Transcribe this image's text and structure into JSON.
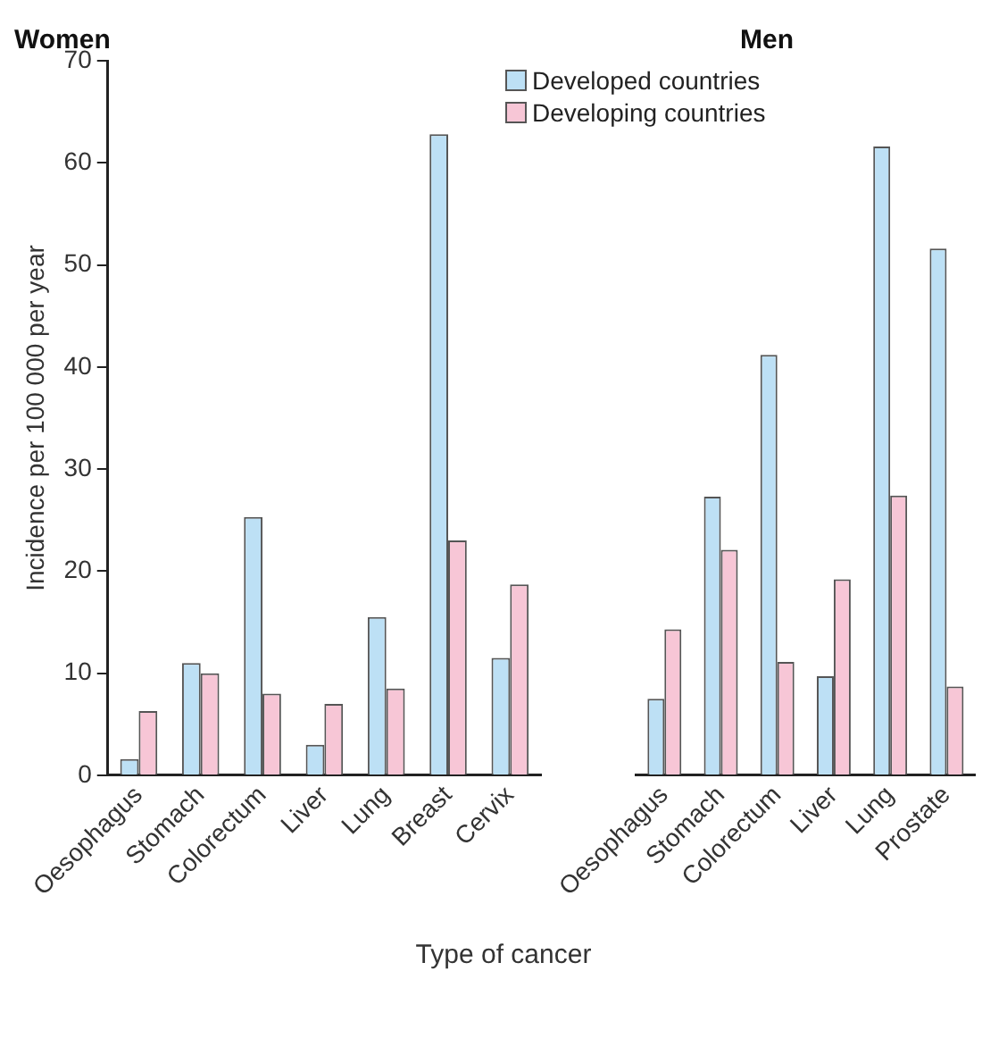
{
  "chart_data": [
    {
      "type": "bar",
      "title": "Women",
      "ylabel": "Incidence per 100 000 per year",
      "xlabel": "Type of cancer",
      "categories": [
        "Oesophagus",
        "Stomach",
        "Colorectum",
        "Liver",
        "Lung",
        "Breast",
        "Cervix"
      ],
      "series": [
        {
          "color": "#bde0f5",
          "values": [
            1.6,
            11,
            25.3,
            3,
            15.5,
            62.8,
            11.5
          ]
        },
        {
          "color": "#f7c6d6",
          "values": [
            6.3,
            10,
            8,
            7,
            8.5,
            23,
            18.7
          ]
        }
      ],
      "ylim": [
        0,
        70
      ],
      "yticks": [
        0,
        10,
        20,
        30,
        40,
        50,
        60,
        70
      ],
      "grid": false,
      "legend": false
    },
    {
      "type": "bar",
      "title": "Men",
      "categories": [
        "Oesophagus",
        "Stomach",
        "Colorectum",
        "Liver",
        "Lung",
        "Prostate"
      ],
      "series": [
        {
          "name": "Developed countries",
          "color": "#bde0f5",
          "values": [
            7.5,
            27.3,
            41.2,
            9.7,
            61.6,
            51.6
          ]
        },
        {
          "name": "Developing countries",
          "color": "#f7c6d6",
          "values": [
            14.3,
            22.1,
            11.1,
            19.2,
            27.4,
            8.7
          ]
        }
      ],
      "ylim": [
        0,
        70
      ],
      "yticks": [
        0,
        10,
        20,
        30,
        40,
        50,
        60,
        70
      ],
      "grid": false,
      "legend": "top left",
      "tick_labels": "x"
    }
  ]
}
